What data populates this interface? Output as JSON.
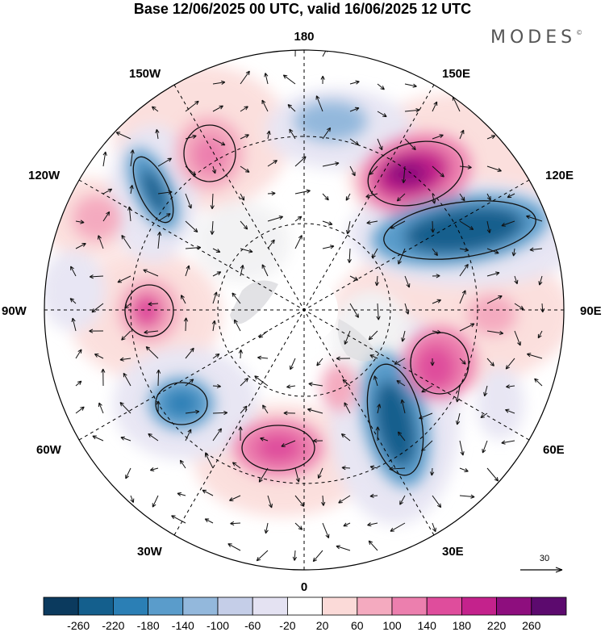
{
  "header": {
    "title": "Base 12/06/2025 00 UTC, valid 16/06/2025 12 UTC",
    "brand": "MODES",
    "brand_mark": "©"
  },
  "map": {
    "projection": "north-polar-stereographic",
    "longitude_labels": {
      "top": "180",
      "bottom": "0",
      "left": "90W",
      "right": "90E",
      "upper_left": "150W",
      "upper_left2": "120W",
      "lower_left": "60W",
      "lower_left2": "30W",
      "upper_right": "150E",
      "upper_right2": "120E",
      "lower_right": "60E",
      "lower_right2": "30E"
    },
    "vector_scale_label": "30",
    "anomaly_centers": [
      {
        "label": "positive",
        "lon": "150E",
        "strength": 240
      },
      {
        "label": "negative",
        "lon": "120E",
        "strength": -220
      },
      {
        "label": "negative",
        "lon": "45E",
        "strength": -220
      },
      {
        "label": "positive",
        "lon": "75E",
        "strength": 160
      },
      {
        "label": "positive",
        "lon": "15W",
        "strength": 160
      },
      {
        "label": "negative",
        "lon": "60W",
        "strength": -140
      },
      {
        "label": "positive",
        "lon": "90W",
        "strength": 140
      },
      {
        "label": "negative",
        "lon": "135W",
        "strength": -180
      },
      {
        "label": "positive",
        "lon": "150W",
        "strength": 120
      }
    ]
  },
  "colorbar": {
    "ticks": [
      "-260",
      "-220",
      "-180",
      "-140",
      "-100",
      "-60",
      "-20",
      "20",
      "60",
      "100",
      "140",
      "180",
      "220",
      "260"
    ],
    "colors": [
      "#0b3a5e",
      "#145f8d",
      "#2b7fb5",
      "#5a9ccb",
      "#93b8dc",
      "#c5cee8",
      "#e4e2f2",
      "#ffffff",
      "#fbdad8",
      "#f4aabf",
      "#ec7fae",
      "#df4d9c",
      "#c4228c",
      "#8e0e7e",
      "#5c0a6e"
    ]
  }
}
